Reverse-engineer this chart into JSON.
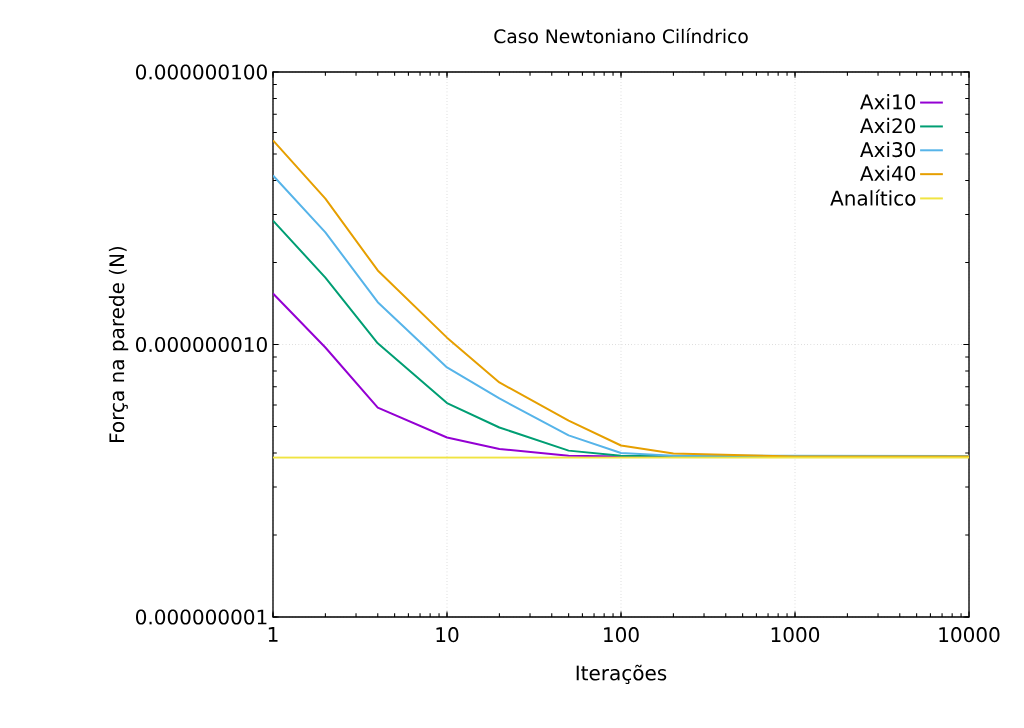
{
  "chart_data": {
    "type": "line",
    "title": "Caso Newtoniano Cilíndrico",
    "xlabel": "Iterações",
    "ylabel": "Força na parede (N)",
    "log": "xy",
    "grid": true,
    "legend": "top right",
    "marker": "none",
    "line_style": "solid",
    "xlim": [
      1,
      10000
    ],
    "ylim": [
      1e-09,
      1e-07
    ],
    "xticks": [
      1,
      10,
      100,
      1000,
      10000
    ],
    "yticks": [
      {
        "value": 1e-09,
        "label": "0.000000001"
      },
      {
        "value": 1e-08,
        "label": "0.000000010"
      },
      {
        "value": 1e-07,
        "label": "0.000000100"
      }
    ],
    "series": [
      {
        "name": "Axi10",
        "color": "#9400d3",
        "x": [
          1,
          2,
          4,
          10,
          20,
          50,
          100,
          10000
        ],
        "values": [
          1.54e-08,
          9.75e-09,
          5.87e-09,
          4.56e-09,
          4.14e-09,
          3.91e-09,
          3.88e-09,
          3.88e-09
        ]
      },
      {
        "name": "Axi20",
        "color": "#009e73",
        "x": [
          1,
          2,
          4,
          10,
          20,
          50,
          100,
          10000
        ],
        "values": [
          2.85e-08,
          1.76e-08,
          1.01e-08,
          6.1e-09,
          4.96e-09,
          4.08e-09,
          3.91e-09,
          3.88e-09
        ]
      },
      {
        "name": "Axi30",
        "color": "#56b4e9",
        "x": [
          1,
          2,
          4,
          10,
          20,
          50,
          100,
          200,
          10000
        ],
        "values": [
          4.17e-08,
          2.58e-08,
          1.43e-08,
          8.24e-09,
          6.34e-09,
          4.64e-09,
          4e-09,
          3.91e-09,
          3.9e-09
        ]
      },
      {
        "name": "Axi40",
        "color": "#e69f00",
        "x": [
          1,
          2,
          4,
          10,
          20,
          50,
          100,
          200,
          1000,
          10000
        ],
        "values": [
          5.61e-08,
          3.43e-08,
          1.87e-08,
          1.06e-08,
          7.26e-09,
          5.26e-09,
          4.26e-09,
          3.98e-09,
          3.88e-09,
          3.88e-09
        ]
      },
      {
        "name": "Analítico",
        "color": "#f0e442",
        "x": [
          1,
          10000
        ],
        "values": [
          3.85e-09,
          3.85e-09
        ]
      }
    ]
  }
}
